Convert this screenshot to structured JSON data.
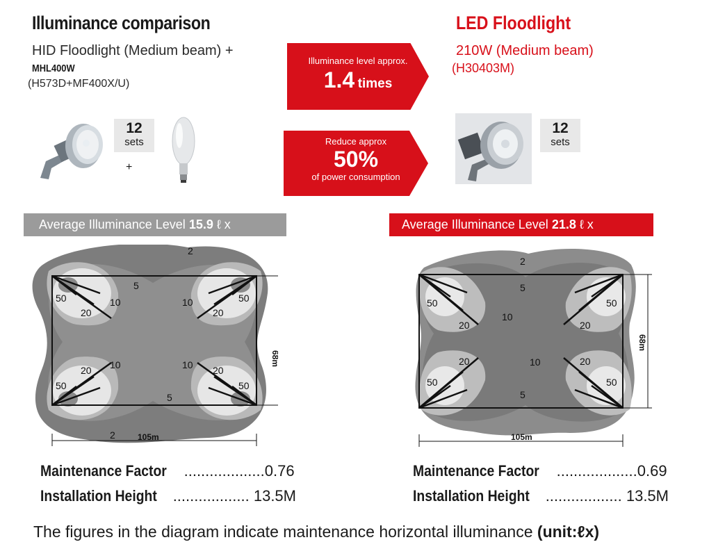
{
  "header": {
    "title": "Illuminance comparison",
    "hid_line1": "HID Floodlight (Medium beam) +",
    "hid_line2": "MHL400W",
    "hid_line3": "(H573D+MF400X/U)",
    "led_title": "LED Floodlight",
    "led_line1": "210W (Medium beam)",
    "led_line2": "(H30403M)"
  },
  "arrows": {
    "illuminance_label": "Illuminance level approx.",
    "illuminance_value": "1.4",
    "illuminance_unit": "times",
    "power_label": "Reduce approx",
    "power_value": "50%",
    "power_sub": "of power consumption"
  },
  "products": {
    "hid_sets_number": "12",
    "hid_sets_unit": "sets",
    "plus": "+",
    "led_sets_number": "12",
    "led_sets_unit": "sets"
  },
  "left": {
    "avg_label": "Average Illuminance Level",
    "avg_value": "15.9",
    "avg_unit": "ℓ x",
    "contour_labels": [
      "2",
      "5",
      "50",
      "20",
      "10",
      "10",
      "50",
      "20",
      "20",
      "10",
      "10",
      "20",
      "50",
      "5",
      "50",
      "2"
    ],
    "dim_width": "105m",
    "dim_height": "68m",
    "mf_label": "Maintenance Factor",
    "mf_dots": "...................",
    "mf_value": "0.76",
    "ih_label": "Installation Height",
    "ih_dots": "..................",
    "ih_value": "13.5M"
  },
  "right": {
    "avg_label": "Average Illuminance Level",
    "avg_value": "21.8",
    "avg_unit": "ℓ x",
    "contour_labels": [
      "2",
      "5",
      "50",
      "50",
      "10",
      "20",
      "20",
      "20",
      "20",
      "10",
      "50",
      "50",
      "5"
    ],
    "dim_width": "105m",
    "dim_height": "68m",
    "mf_label": "Maintenance Factor",
    "mf_dots": "...................",
    "mf_value": "0.69",
    "ih_label": "Installation Height",
    "ih_dots": "..................",
    "ih_value": "13.5M"
  },
  "footer": {
    "text": "The figures in the diagram indicate maintenance horizontal illuminance",
    "unit": "(unit:ℓx)"
  },
  "colors": {
    "accent_red": "#d7101a",
    "grey_bar": "#9b9b9b",
    "contour_outer": "#7a7a7a",
    "contour_mid": "#b8b8b8",
    "contour_inner": "#e6e6e6"
  }
}
